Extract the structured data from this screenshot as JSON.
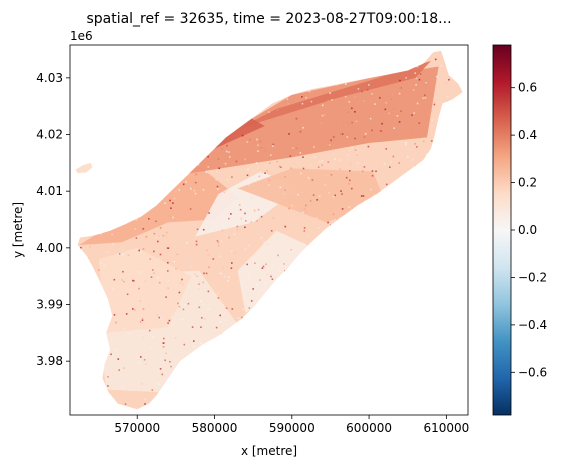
{
  "chart_data": {
    "type": "heatmap",
    "title": "spatial_ref = 32635, time = 2023-08-27T09:00:18...",
    "xlabel": "x [metre]",
    "ylabel": "y [metre]",
    "y_offset_label": "1e6",
    "xlim": [
      561300,
      612800
    ],
    "ylim": [
      3970500,
      4035800
    ],
    "x_ticks": [
      570000,
      580000,
      590000,
      600000,
      610000
    ],
    "x_tick_labels": [
      "570000",
      "580000",
      "590000",
      "600000",
      "610000"
    ],
    "y_ticks": [
      3980000,
      3990000,
      4000000,
      4010000,
      4020000,
      4030000
    ],
    "y_tick_labels": [
      "3.98",
      "3.99",
      "4.00",
      "4.01",
      "4.02",
      "4.03"
    ],
    "colorbar": {
      "cmap": "RdBu_r",
      "vmin": -0.78,
      "vmax": 0.78,
      "ticks": [
        -0.6,
        -0.4,
        -0.2,
        0.0,
        0.2,
        0.4,
        0.6
      ],
      "tick_labels": [
        "−0.6",
        "−0.4",
        "−0.2",
        "0.0",
        "0.2",
        "0.4",
        "0.6"
      ],
      "colors": [
        "#053061",
        "#2166ac",
        "#4393c3",
        "#92c5de",
        "#d1e5f0",
        "#f7f7f7",
        "#fddbc7",
        "#f4a582",
        "#d6604d",
        "#b2182b",
        "#67001f"
      ]
    },
    "island_outline": [
      [
        570000,
        3971500
      ],
      [
        567500,
        3972500
      ],
      [
        566300,
        3974500
      ],
      [
        565500,
        3977000
      ],
      [
        565800,
        3979500
      ],
      [
        566500,
        3982000
      ],
      [
        566000,
        3985000
      ],
      [
        566800,
        3988000
      ],
      [
        566200,
        3991000
      ],
      [
        565200,
        3994000
      ],
      [
        564300,
        3996500
      ],
      [
        563500,
        3998500
      ],
      [
        562300,
        4000500
      ],
      [
        562600,
        4001800
      ],
      [
        564500,
        4002200
      ],
      [
        566500,
        4003000
      ],
      [
        568500,
        4004200
      ],
      [
        570500,
        4005500
      ],
      [
        572500,
        4007500
      ],
      [
        574000,
        4009500
      ],
      [
        575500,
        4011500
      ],
      [
        577000,
        4013500
      ],
      [
        578500,
        4015500
      ],
      [
        580000,
        4017500
      ],
      [
        581500,
        4019500
      ],
      [
        583500,
        4021500
      ],
      [
        585500,
        4023500
      ],
      [
        587500,
        4025500
      ],
      [
        590000,
        4027000
      ],
      [
        592500,
        4028000
      ],
      [
        595000,
        4028600
      ],
      [
        597500,
        4029300
      ],
      [
        600000,
        4030000
      ],
      [
        602500,
        4030600
      ],
      [
        605000,
        4031300
      ],
      [
        607000,
        4032500
      ],
      [
        608300,
        4034500
      ],
      [
        609300,
        4034800
      ],
      [
        609800,
        4032800
      ],
      [
        610300,
        4030500
      ],
      [
        611500,
        4029000
      ],
      [
        612100,
        4027500
      ],
      [
        610800,
        4026200
      ],
      [
        609500,
        4025500
      ],
      [
        609000,
        4023000
      ],
      [
        608500,
        4020000
      ],
      [
        608000,
        4017500
      ],
      [
        607000,
        4015500
      ],
      [
        605500,
        4014000
      ],
      [
        603500,
        4012000
      ],
      [
        601000,
        4009500
      ],
      [
        598500,
        4007500
      ],
      [
        596500,
        4005500
      ],
      [
        594500,
        4003500
      ],
      [
        592500,
        4001000
      ],
      [
        591000,
        3999000
      ],
      [
        589500,
        3996500
      ],
      [
        588000,
        3994500
      ],
      [
        586500,
        3992000
      ],
      [
        585000,
        3989500
      ],
      [
        583500,
        3987500
      ],
      [
        582000,
        3986000
      ],
      [
        580500,
        3984500
      ],
      [
        578500,
        3983000
      ],
      [
        577000,
        3981500
      ],
      [
        575500,
        3980000
      ],
      [
        574500,
        3978000
      ],
      [
        573500,
        3976000
      ],
      [
        572500,
        3974000
      ],
      [
        571500,
        3972500
      ]
    ],
    "islet_outline": [
      [
        562000,
        4013800
      ],
      [
        563000,
        4014600
      ],
      [
        564000,
        4015000
      ],
      [
        564200,
        4014200
      ],
      [
        563400,
        4013300
      ],
      [
        562300,
        4013200
      ]
    ],
    "zones": [
      {
        "value": 0.09,
        "points": [
          [
            566000,
            3975000
          ],
          [
            573000,
            3974500
          ],
          [
            578000,
            3982000
          ],
          [
            583000,
            3986500
          ],
          [
            578000,
            3996000
          ],
          [
            566500,
            3995000
          ],
          [
            565000,
            3986000
          ]
        ]
      },
      {
        "value": 0.15,
        "points": [
          [
            566000,
            3985000
          ],
          [
            574000,
            3986000
          ],
          [
            577000,
            3995000
          ],
          [
            570000,
            4000000
          ],
          [
            565000,
            3998000
          ]
        ]
      },
      {
        "value": 0.28,
        "points": [
          [
            562500,
            4000500
          ],
          [
            568000,
            4001000
          ],
          [
            574000,
            4004500
          ],
          [
            580000,
            4005000
          ],
          [
            583000,
            4009000
          ],
          [
            578000,
            4014500
          ],
          [
            574000,
            4010000
          ],
          [
            566000,
            4003500
          ]
        ]
      },
      {
        "value": 0.35,
        "points": [
          [
            576000,
            4013000
          ],
          [
            590000,
            4016000
          ],
          [
            600000,
            4018500
          ],
          [
            607500,
            4019500
          ],
          [
            609000,
            4032000
          ],
          [
            602000,
            4030500
          ],
          [
            590000,
            4027000
          ],
          [
            582000,
            4020500
          ]
        ]
      },
      {
        "value": 0.42,
        "points": [
          [
            583000,
            4021000
          ],
          [
            596000,
            4026500
          ],
          [
            606000,
            4030000
          ],
          [
            608000,
            4033000
          ],
          [
            600000,
            4029500
          ],
          [
            588000,
            4024500
          ]
        ]
      },
      {
        "value": 0.05,
        "points": [
          [
            577500,
            4002000
          ],
          [
            585000,
            4004500
          ],
          [
            591000,
            4010500
          ],
          [
            586000,
            4013500
          ],
          [
            580500,
            4009500
          ]
        ]
      },
      {
        "value": 0.07,
        "points": [
          [
            584000,
            3988500
          ],
          [
            589000,
            3993500
          ],
          [
            592000,
            4000500
          ],
          [
            588000,
            4003000
          ],
          [
            583000,
            3996000
          ]
        ]
      },
      {
        "value": 0.24,
        "points": [
          [
            583000,
            4010500
          ],
          [
            594500,
            4004500
          ],
          [
            602000,
            4008500
          ],
          [
            600500,
            4013500
          ],
          [
            590000,
            4014000
          ]
        ]
      },
      {
        "value": 0.46,
        "points": [
          [
            580000,
            4017500
          ],
          [
            586500,
            4021500
          ],
          [
            584000,
            4023500
          ],
          [
            578500,
            4019500
          ]
        ]
      }
    ],
    "islet_value": 0.14
  }
}
